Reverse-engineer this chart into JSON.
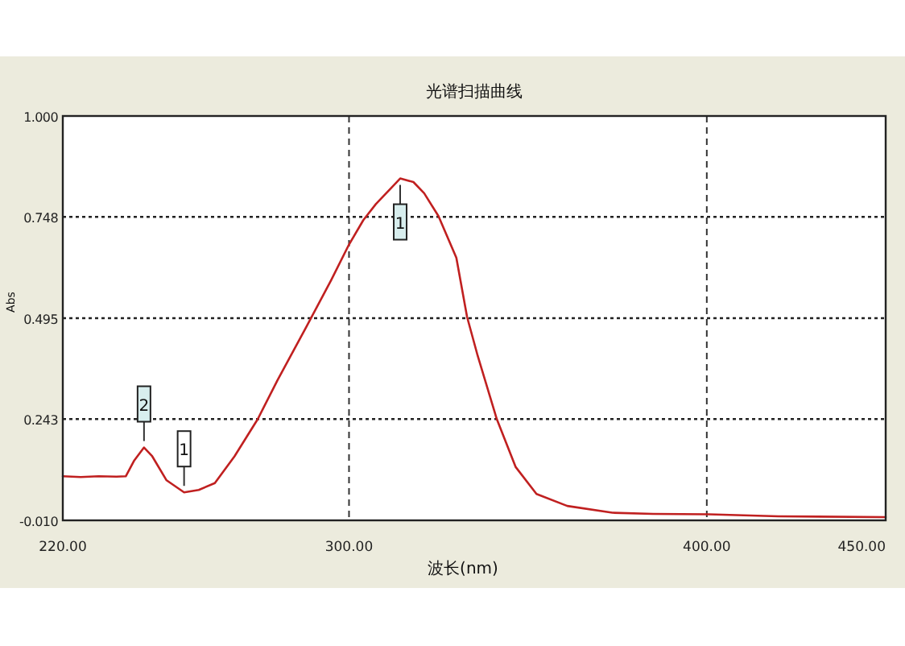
{
  "chart_data": {
    "type": "line",
    "title": "光谱扫描曲线",
    "xlabel": "波长(nm)",
    "ylabel": "Abs",
    "xlim": [
      220,
      450
    ],
    "ylim": [
      -0.01,
      1
    ],
    "xticks": [
      {
        "value": 220,
        "label": "220.00"
      },
      {
        "value": 300,
        "label": "300.00"
      },
      {
        "value": 400,
        "label": "400.00"
      },
      {
        "value": 450,
        "label": "450.00"
      }
    ],
    "yticks": [
      {
        "value": -0.01,
        "label": "-0.010"
      },
      {
        "value": 0.243,
        "label": "0.243"
      },
      {
        "value": 0.495,
        "label": "0.495"
      },
      {
        "value": 0.748,
        "label": "0.748"
      },
      {
        "value": 1,
        "label": "1.000"
      }
    ],
    "grid": true,
    "marker": "none",
    "series": [
      {
        "color": "#c02020",
        "x": [
          220,
          225,
          230,
          235,
          237.6,
          240,
          242.7,
          245,
          249,
          253.9,
          258,
          262.5,
          268,
          274.5,
          280,
          288,
          295,
          300,
          304,
          307.5,
          314.3,
          318,
          321,
          325,
          330,
          333,
          336,
          341.3,
          346.6,
          352.4,
          361,
          373.6,
          385,
          400.6,
          420,
          450
        ],
        "values": [
          0.1,
          0.098,
          0.1,
          0.099,
          0.1,
          0.14,
          0.172,
          0.15,
          0.09,
          0.06,
          0.066,
          0.083,
          0.15,
          0.243,
          0.34,
          0.472,
          0.59,
          0.679,
          0.74,
          0.78,
          0.844,
          0.835,
          0.807,
          0.75,
          0.646,
          0.498,
          0.4,
          0.243,
          0.123,
          0.056,
          0.026,
          0.009,
          0.006,
          0.005,
          0.0,
          -0.002
        ]
      }
    ],
    "annotations": [
      {
        "text": "2",
        "x": 242.7,
        "y": 0.172
      },
      {
        "text": "1",
        "x": 253.9,
        "y": 0.06
      },
      {
        "text": "1",
        "x": 314.3,
        "y": 0.844
      }
    ]
  }
}
